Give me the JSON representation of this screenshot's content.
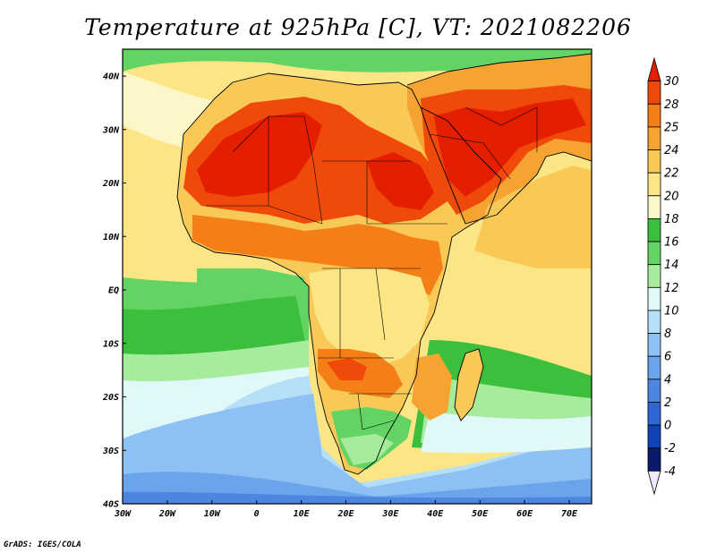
{
  "title": "Temperature at 925hPa [C], VT: 2021082206",
  "credit": "GrADS: IGES/COLA",
  "lat_labels": [
    "40N",
    "30N",
    "20N",
    "10N",
    "EQ",
    "10S",
    "20S",
    "30S",
    "40S"
  ],
  "lon_labels": [
    "30W",
    "20W",
    "10W",
    "0",
    "10E",
    "20E",
    "30E",
    "40E",
    "50E",
    "60E",
    "70E"
  ],
  "extent": {
    "lon_min": -30,
    "lon_max": 75,
    "lat_min": -40,
    "lat_max": 45
  },
  "colorbar": {
    "labels": [
      "30",
      "28",
      "25",
      "24",
      "22",
      "20",
      "18",
      "16",
      "14",
      "12",
      "10",
      "8",
      "6",
      "4",
      "2",
      "0",
      "-2",
      "-4"
    ],
    "colors": [
      "#e41e00",
      "#ef4a0a",
      "#f57f17",
      "#f6a431",
      "#f8c957",
      "#fbe585",
      "#fbf7c8",
      "#3cbf3c",
      "#63d463",
      "#a6ec9c",
      "#e0f8f8",
      "#b5dff7",
      "#8dc1f3",
      "#6ca4ec",
      "#4c86e0",
      "#2e66d4",
      "#1243b4",
      "#0a1b6c",
      "#f0e8fb"
    ]
  }
}
